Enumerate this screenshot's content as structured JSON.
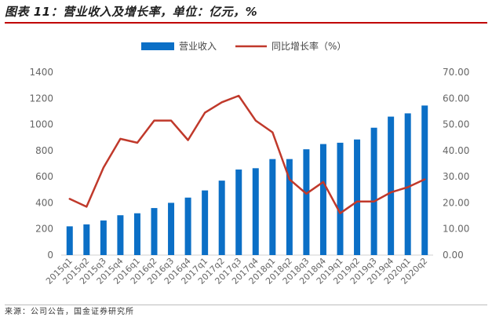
{
  "figure_title": "图表 11：营业收入及增长率，单位：亿元，%",
  "source": "来源：公司公告，国金证券研究所",
  "colors": {
    "bar": "#0b6fc6",
    "line": "#c0392b",
    "title_rule": "#c00000",
    "axis_text": "#666666"
  },
  "chart_data": {
    "type": "bar+line",
    "categories": [
      "2015q1",
      "2015q2",
      "2015q3",
      "2015q4",
      "2016q1",
      "2016q2",
      "2016q3",
      "2016q4",
      "2017q1",
      "2017q2",
      "2017q3",
      "2017q4",
      "2018q1",
      "2018q2",
      "2018q3",
      "2018q4",
      "2019q1",
      "2019q2",
      "2019q3",
      "2019q4",
      "2020q1",
      "2020q2"
    ],
    "series": [
      {
        "name": "营业收入",
        "kind": "bar",
        "axis": "left",
        "values": [
          220,
          235,
          265,
          305,
          320,
          360,
          400,
          440,
          495,
          570,
          655,
          665,
          735,
          735,
          810,
          850,
          860,
          885,
          975,
          1060,
          1085,
          1145
        ]
      },
      {
        "name": "同比增长率（%）",
        "kind": "line",
        "axis": "right",
        "values": [
          21.5,
          18.5,
          33.5,
          44.5,
          43.0,
          51.5,
          51.5,
          44.0,
          54.5,
          58.5,
          61.0,
          51.5,
          47.0,
          29.0,
          23.5,
          28.0,
          16.0,
          20.5,
          20.5,
          24.0,
          26.0,
          29.0
        ]
      }
    ],
    "y_left": {
      "min": 0,
      "max": 1400,
      "ticks": [
        "0",
        "200",
        "400",
        "600",
        "800",
        "1000",
        "1200",
        "1400"
      ]
    },
    "y_right": {
      "min": 0,
      "max": 70,
      "ticks": [
        "0.00",
        "10.00",
        "20.00",
        "30.00",
        "40.00",
        "50.00",
        "60.00",
        "70.00"
      ]
    },
    "legend": {
      "bar_label": "营业收入",
      "line_label": "同比增长率（%）",
      "position": "top-center"
    },
    "grid": false
  }
}
